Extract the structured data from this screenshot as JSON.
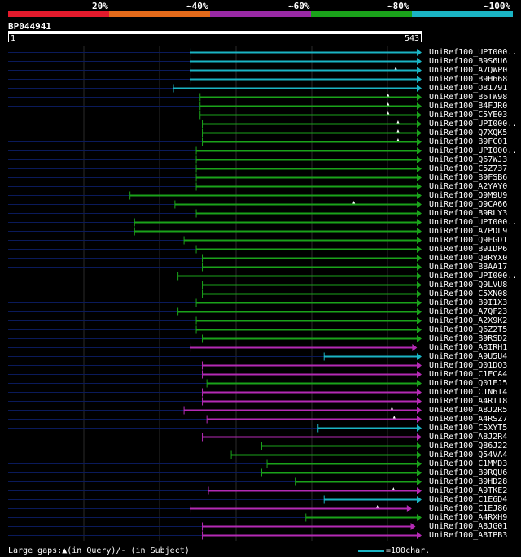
{
  "legend": {
    "colors": [
      "#e41a2c",
      "#e46a1a",
      "#9a2aa6",
      "#1aa21a",
      "#1ab4c4"
    ],
    "labels": [
      "20%",
      "~40%",
      "~60%",
      "~80%",
      "~100%"
    ]
  },
  "query": {
    "id": "BP044941",
    "start": "1",
    "end": "543",
    "length": 543
  },
  "colors": {
    "cyan": "#1ab4c4",
    "green": "#1aa21a",
    "magenta": "#b42ab4",
    "navy": "#0a1a5a",
    "grid": "#2a2a2a"
  },
  "hits": [
    {
      "name": "UniRef100_UPI000..",
      "start": 240,
      "end": 543,
      "color": "cyan",
      "marks": []
    },
    {
      "name": "UniRef100_B9S6U6",
      "start": 240,
      "end": 543,
      "color": "cyan",
      "marks": []
    },
    {
      "name": "UniRef100_A7QWP0",
      "start": 240,
      "end": 543,
      "color": "cyan",
      "marks": [
        510
      ]
    },
    {
      "name": "UniRef100_B9H668",
      "start": 240,
      "end": 543,
      "color": "cyan",
      "marks": []
    },
    {
      "name": "UniRef100_O81791",
      "start": 218,
      "end": 543,
      "color": "cyan",
      "marks": []
    },
    {
      "name": "UniRef100_B6TW98",
      "start": 253,
      "end": 543,
      "color": "green",
      "marks": [
        500
      ]
    },
    {
      "name": "UniRef100_B4FJR0",
      "start": 253,
      "end": 543,
      "color": "green",
      "marks": [
        500
      ]
    },
    {
      "name": "UniRef100_C5YE03",
      "start": 253,
      "end": 543,
      "color": "green",
      "marks": [
        500
      ]
    },
    {
      "name": "UniRef100_UPI000..",
      "start": 256,
      "end": 543,
      "color": "green",
      "marks": [
        513
      ]
    },
    {
      "name": "UniRef100_Q7XQK5",
      "start": 256,
      "end": 543,
      "color": "green",
      "marks": [
        513
      ]
    },
    {
      "name": "UniRef100_B9FC01",
      "start": 256,
      "end": 543,
      "color": "green",
      "marks": [
        513
      ]
    },
    {
      "name": "UniRef100_UPI000..",
      "start": 248,
      "end": 543,
      "color": "green",
      "marks": []
    },
    {
      "name": "UniRef100_Q67WJ3",
      "start": 248,
      "end": 543,
      "color": "green",
      "marks": []
    },
    {
      "name": "UniRef100_C5Z737",
      "start": 248,
      "end": 543,
      "color": "green",
      "marks": []
    },
    {
      "name": "UniRef100_B9FSB6",
      "start": 248,
      "end": 543,
      "color": "green",
      "marks": []
    },
    {
      "name": "UniRef100_A2YAY0",
      "start": 248,
      "end": 543,
      "color": "green",
      "marks": []
    },
    {
      "name": "UniRef100_Q9M9U9",
      "start": 161,
      "end": 543,
      "color": "green",
      "marks": []
    },
    {
      "name": "UniRef100_Q9CA66",
      "start": 220,
      "end": 543,
      "color": "green",
      "marks": [
        455
      ]
    },
    {
      "name": "UniRef100_B9RLY3",
      "start": 248,
      "end": 543,
      "color": "green",
      "marks": []
    },
    {
      "name": "UniRef100_UPI000..",
      "start": 167,
      "end": 543,
      "color": "green",
      "marks": []
    },
    {
      "name": "UniRef100_A7PDL9",
      "start": 167,
      "end": 543,
      "color": "green",
      "marks": []
    },
    {
      "name": "UniRef100_Q9FGD1",
      "start": 232,
      "end": 543,
      "color": "green",
      "marks": []
    },
    {
      "name": "UniRef100_B9IDP6",
      "start": 248,
      "end": 543,
      "color": "green",
      "marks": []
    },
    {
      "name": "UniRef100_Q8RYX0",
      "start": 256,
      "end": 543,
      "color": "green",
      "marks": []
    },
    {
      "name": "UniRef100_B8AA17",
      "start": 256,
      "end": 543,
      "color": "green",
      "marks": []
    },
    {
      "name": "UniRef100_UPI000..",
      "start": 224,
      "end": 543,
      "color": "green",
      "marks": []
    },
    {
      "name": "UniRef100_Q9LVU8",
      "start": 256,
      "end": 543,
      "color": "green",
      "marks": []
    },
    {
      "name": "UniRef100_C5XN08",
      "start": 256,
      "end": 543,
      "color": "green",
      "marks": []
    },
    {
      "name": "UniRef100_B9I1X3",
      "start": 248,
      "end": 543,
      "color": "green",
      "marks": []
    },
    {
      "name": "UniRef100_A7QF23",
      "start": 224,
      "end": 543,
      "color": "green",
      "marks": []
    },
    {
      "name": "UniRef100_A2X9K2",
      "start": 248,
      "end": 543,
      "color": "green",
      "marks": []
    },
    {
      "name": "UniRef100_Q6Z2T5",
      "start": 248,
      "end": 543,
      "color": "green",
      "marks": []
    },
    {
      "name": "UniRef100_B9RSD2",
      "start": 256,
      "end": 543,
      "color": "green",
      "marks": []
    },
    {
      "name": "UniRef100_A8IRH1",
      "start": 240,
      "end": 537,
      "color": "magenta",
      "marks": []
    },
    {
      "name": "UniRef100_A9U5U4",
      "start": 416,
      "end": 543,
      "color": "cyan",
      "marks": []
    },
    {
      "name": "UniRef100_Q01DQ3",
      "start": 256,
      "end": 543,
      "color": "magenta",
      "marks": []
    },
    {
      "name": "UniRef100_C1ECA4",
      "start": 256,
      "end": 543,
      "color": "magenta",
      "marks": []
    },
    {
      "name": "UniRef100_Q01EJ5",
      "start": 262,
      "end": 543,
      "color": "green",
      "marks": []
    },
    {
      "name": "UniRef100_C1N6T4",
      "start": 256,
      "end": 543,
      "color": "magenta",
      "marks": []
    },
    {
      "name": "UniRef100_A4RTI8",
      "start": 256,
      "end": 543,
      "color": "magenta",
      "marks": []
    },
    {
      "name": "UniRef100_A8J2R5",
      "start": 232,
      "end": 543,
      "color": "magenta",
      "marks": [
        505
      ]
    },
    {
      "name": "UniRef100_A4RSZ7",
      "start": 262,
      "end": 543,
      "color": "magenta",
      "marks": [
        508
      ]
    },
    {
      "name": "UniRef100_C5XYT5",
      "start": 408,
      "end": 543,
      "color": "cyan",
      "marks": []
    },
    {
      "name": "UniRef100_A8J2R4",
      "start": 256,
      "end": 543,
      "color": "magenta",
      "marks": []
    },
    {
      "name": "UniRef100_Q86J22",
      "start": 334,
      "end": 543,
      "color": "green",
      "marks": []
    },
    {
      "name": "UniRef100_Q54VA4",
      "start": 294,
      "end": 543,
      "color": "green",
      "marks": []
    },
    {
      "name": "UniRef100_C1MMD3",
      "start": 341,
      "end": 543,
      "color": "green",
      "marks": []
    },
    {
      "name": "UniRef100_B9RQU6",
      "start": 334,
      "end": 543,
      "color": "green",
      "marks": []
    },
    {
      "name": "UniRef100_B9HD28",
      "start": 378,
      "end": 543,
      "color": "green",
      "marks": []
    },
    {
      "name": "UniRef100_A9TKE2",
      "start": 264,
      "end": 543,
      "color": "magenta",
      "marks": [
        507
      ]
    },
    {
      "name": "UniRef100_C1E6D4",
      "start": 416,
      "end": 543,
      "color": "cyan",
      "marks": []
    },
    {
      "name": "UniRef100_C1EJ86",
      "start": 240,
      "end": 530,
      "color": "magenta",
      "marks": [
        486
      ]
    },
    {
      "name": "UniRef100_A4RXH9",
      "start": 392,
      "end": 543,
      "color": "green",
      "marks": []
    },
    {
      "name": "UniRef100_A8JG01",
      "start": 256,
      "end": 535,
      "color": "magenta",
      "marks": []
    },
    {
      "name": "UniRef100_A8IPB3",
      "start": 256,
      "end": 543,
      "color": "magenta",
      "marks": []
    }
  ],
  "footer": {
    "gaps_text": "Large gaps:▲(in Query)/- (in Subject)",
    "scale_text": "=100char."
  }
}
